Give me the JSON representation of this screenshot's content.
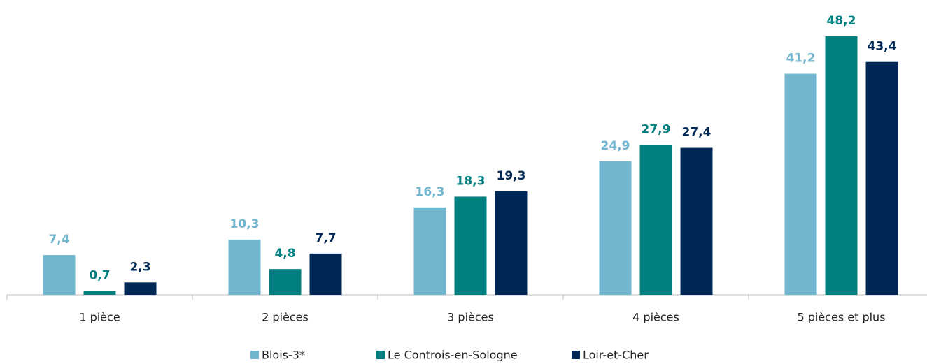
{
  "chart_data": {
    "type": "bar",
    "categories": [
      "1 pièce",
      "2 pièces",
      "3 pièces",
      "4 pièces",
      "5 pièces et plus"
    ],
    "series": [
      {
        "name": "Blois-3*",
        "color": "#70b6cf",
        "values": [
          7.4,
          10.3,
          16.3,
          24.9,
          41.2
        ],
        "value_labels": [
          "7,4",
          "10,3",
          "16,3",
          "24,9",
          "41,2"
        ]
      },
      {
        "name": "Le Controis-en-Sologne",
        "color": "#008080",
        "values": [
          0.7,
          4.8,
          18.3,
          27.9,
          48.2
        ],
        "value_labels": [
          "0,7",
          "4,8",
          "18,3",
          "27,9",
          "48,2"
        ]
      },
      {
        "name": "Loir-et-Cher",
        "color": "#002856",
        "values": [
          2.3,
          7.7,
          19.3,
          27.4,
          43.4
        ],
        "value_labels": [
          "2,3",
          "7,7",
          "19,3",
          "27,4",
          "43,4"
        ]
      }
    ],
    "ylim": [
      0,
      50
    ],
    "legend": "bottom"
  }
}
